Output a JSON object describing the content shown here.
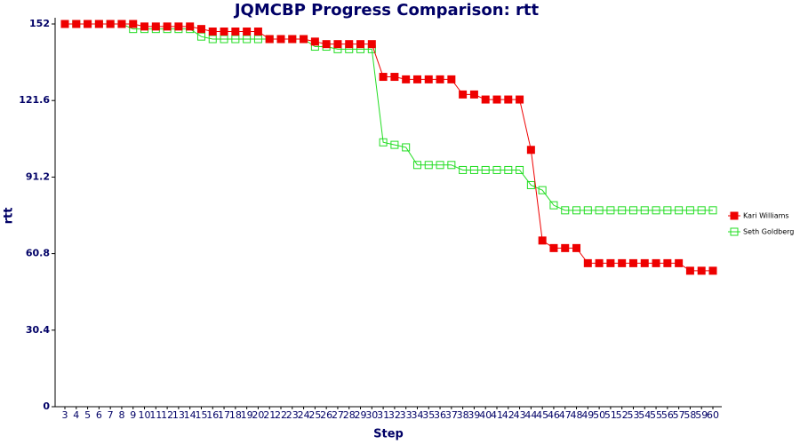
{
  "chart_data": {
    "type": "line",
    "title": "JQMCBP Progress Comparison: rtt",
    "x_label": "Step",
    "y_label": "rtt",
    "categories": [
      "3",
      "4",
      "5",
      "6",
      "7",
      "8",
      "9",
      "10",
      "11",
      "12",
      "13",
      "14",
      "15",
      "16",
      "17",
      "18",
      "19",
      "20",
      "21",
      "22",
      "23",
      "24",
      "25",
      "26",
      "27",
      "28",
      "29",
      "30",
      "31",
      "32",
      "33",
      "34",
      "35",
      "36",
      "37",
      "38",
      "39",
      "40",
      "41",
      "42",
      "43",
      "44",
      "45",
      "46",
      "47",
      "48",
      "49",
      "50",
      "51",
      "52",
      "53",
      "54",
      "55",
      "56",
      "57",
      "58",
      "59",
      "60"
    ],
    "series": [
      {
        "name": "Kari Williams",
        "color": "#ee0000",
        "marker": "filled-square",
        "values": [
          152,
          152,
          152,
          152,
          152,
          152,
          152,
          151,
          151,
          151,
          151,
          151,
          150,
          149,
          149,
          149,
          149,
          149,
          146,
          146,
          146,
          146,
          145,
          144,
          144,
          144,
          144,
          144,
          131,
          131,
          130,
          130,
          130,
          130,
          130,
          124,
          124,
          122,
          122,
          122,
          122,
          102,
          66,
          63,
          63,
          63,
          57,
          57,
          57,
          57,
          57,
          57,
          57,
          57,
          57,
          54,
          54,
          54
        ]
      },
      {
        "name": "Seth Goldberg",
        "color": "#22dd22",
        "marker": "open-square",
        "values": [
          152,
          152,
          152,
          152,
          152,
          152,
          150,
          150,
          150,
          150,
          150,
          150,
          147,
          146,
          146,
          146,
          146,
          146,
          146,
          146,
          146,
          146,
          143,
          143,
          142,
          142,
          142,
          142,
          105,
          104,
          103,
          96,
          96,
          96,
          96,
          94,
          94,
          94,
          94,
          94,
          94,
          88,
          86,
          80,
          78,
          78,
          78,
          78,
          78,
          78,
          78,
          78,
          78,
          78,
          78,
          78,
          78,
          78
        ]
      }
    ],
    "ylim": [
      0,
      152
    ],
    "yticks": [
      0,
      30.4,
      60.8,
      91.2,
      121.6,
      152
    ],
    "legend": "right"
  }
}
